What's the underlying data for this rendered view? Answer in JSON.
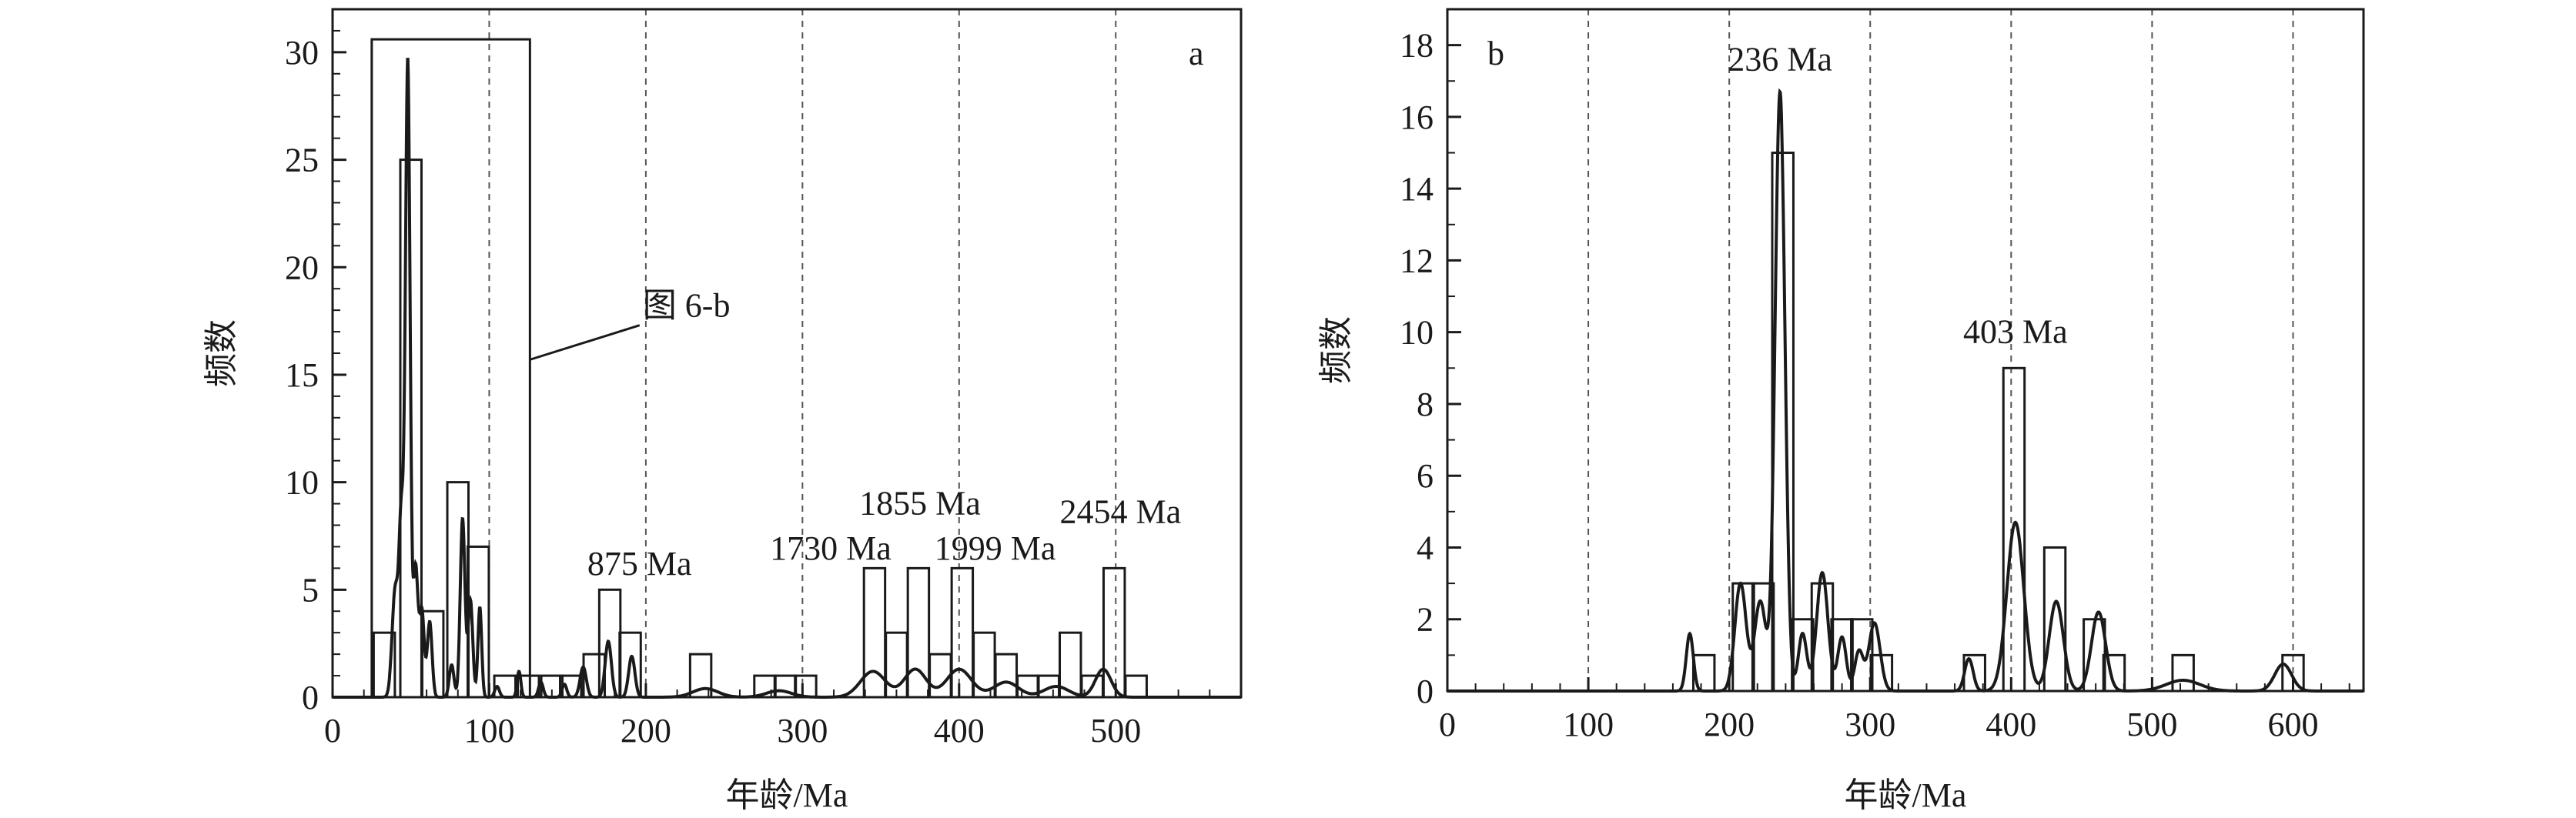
{
  "chart_data": [
    {
      "panel_letter": "a",
      "type": "bar",
      "xlabel": "年龄/Ma",
      "ylabel": "频数",
      "xlim": [
        0,
        580
      ],
      "ylim": [
        0,
        32
      ],
      "xticks": [
        0,
        100,
        200,
        300,
        400,
        500
      ],
      "yticks": [
        0,
        5,
        10,
        15,
        20,
        25,
        30
      ],
      "bin_width": 13.5,
      "vertical_dashed_lines": [
        100,
        200,
        300,
        400,
        500
      ],
      "bars": [
        {
          "x": 33,
          "value": 3
        },
        {
          "x": 50,
          "value": 25
        },
        {
          "x": 64,
          "value": 4
        },
        {
          "x": 80,
          "value": 10
        },
        {
          "x": 93,
          "value": 7
        },
        {
          "x": 110,
          "value": 1
        },
        {
          "x": 125,
          "value": 1
        },
        {
          "x": 140,
          "value": 1
        },
        {
          "x": 152,
          "value": 1
        },
        {
          "x": 167,
          "value": 2
        },
        {
          "x": 177,
          "value": 5
        },
        {
          "x": 190,
          "value": 3
        },
        {
          "x": 235,
          "value": 2
        },
        {
          "x": 276,
          "value": 1
        },
        {
          "x": 289,
          "value": 1
        },
        {
          "x": 302,
          "value": 1
        },
        {
          "x": 346,
          "value": 6
        },
        {
          "x": 360,
          "value": 3
        },
        {
          "x": 374,
          "value": 6
        },
        {
          "x": 388,
          "value": 2
        },
        {
          "x": 402,
          "value": 6
        },
        {
          "x": 416,
          "value": 3
        },
        {
          "x": 430,
          "value": 2
        },
        {
          "x": 444,
          "value": 1
        },
        {
          "x": 457,
          "value": 1
        },
        {
          "x": 471,
          "value": 3
        },
        {
          "x": 485,
          "value": 1
        },
        {
          "x": 499,
          "value": 6
        },
        {
          "x": 513,
          "value": 1
        }
      ],
      "density_peaks": [
        {
          "x": 40,
          "height": 5.0,
          "width": 2
        },
        {
          "x": 44,
          "height": 8.0,
          "width": 1.5
        },
        {
          "x": 48,
          "height": 29.5,
          "width": 1.5
        },
        {
          "x": 53,
          "height": 6.0,
          "width": 1.5
        },
        {
          "x": 57,
          "height": 4.0,
          "width": 1.5
        },
        {
          "x": 62,
          "height": 3.5,
          "width": 1.5
        },
        {
          "x": 76,
          "height": 1.5,
          "width": 1.5
        },
        {
          "x": 83,
          "height": 8.3,
          "width": 1.5
        },
        {
          "x": 88,
          "height": 4.5,
          "width": 1.5
        },
        {
          "x": 94,
          "height": 4.2,
          "width": 1.2
        },
        {
          "x": 105,
          "height": 0.5,
          "width": 1.5
        },
        {
          "x": 119,
          "height": 1.2,
          "width": 1.2
        },
        {
          "x": 133,
          "height": 0.7,
          "width": 1.5
        },
        {
          "x": 148,
          "height": 0.6,
          "width": 1.5
        },
        {
          "x": 160,
          "height": 1.4,
          "width": 2
        },
        {
          "x": 176,
          "height": 2.6,
          "width": 2
        },
        {
          "x": 191,
          "height": 1.9,
          "width": 2
        },
        {
          "x": 238,
          "height": 0.4,
          "width": 8
        },
        {
          "x": 285,
          "height": 0.3,
          "width": 8
        },
        {
          "x": 345,
          "height": 1.2,
          "width": 8
        },
        {
          "x": 372,
          "height": 1.3,
          "width": 7
        },
        {
          "x": 400,
          "height": 1.3,
          "width": 8
        },
        {
          "x": 430,
          "height": 0.7,
          "width": 8
        },
        {
          "x": 462,
          "height": 0.5,
          "width": 8
        },
        {
          "x": 492,
          "height": 1.3,
          "width": 5
        }
      ],
      "annotations": [
        {
          "text": "875 Ma",
          "x": 196,
          "y": 5.7
        },
        {
          "text": "1730 Ma",
          "x": 318,
          "y": 6.4
        },
        {
          "text": "1855 Ma",
          "x": 375,
          "y": 8.5
        },
        {
          "text": "1999 Ma",
          "x": 423,
          "y": 6.4
        },
        {
          "text": "2454 Ma",
          "x": 503,
          "y": 8.1
        }
      ],
      "inset_box": {
        "x0": 25,
        "x1": 126,
        "y0": 0,
        "y1": 30.6
      },
      "inset_label": "图 6-b",
      "inset_label_pos": {
        "x": 198,
        "y": 17.7
      },
      "inset_leader_from": {
        "x": 126,
        "y": 15.7
      },
      "inset_leader_to": {
        "x": 196,
        "y": 17.3
      }
    },
    {
      "panel_letter": "b",
      "type": "bar",
      "xlabel": "年龄/Ma",
      "ylabel": "频数",
      "xlim": [
        0,
        650
      ],
      "ylim": [
        0,
        19
      ],
      "xticks": [
        0,
        100,
        200,
        300,
        400,
        500,
        600
      ],
      "yticks": [
        0,
        2,
        4,
        6,
        8,
        10,
        12,
        14,
        16,
        18
      ],
      "bin_width": 15,
      "vertical_dashed_lines": [
        100,
        200,
        300,
        400,
        500,
        600
      ],
      "bars": [
        {
          "x": 182,
          "value": 1
        },
        {
          "x": 210,
          "value": 3
        },
        {
          "x": 224,
          "value": 3
        },
        {
          "x": 238,
          "value": 15
        },
        {
          "x": 252,
          "value": 2
        },
        {
          "x": 266,
          "value": 3
        },
        {
          "x": 280,
          "value": 2
        },
        {
          "x": 294,
          "value": 2
        },
        {
          "x": 308,
          "value": 1
        },
        {
          "x": 374,
          "value": 1
        },
        {
          "x": 402,
          "value": 9
        },
        {
          "x": 431,
          "value": 4
        },
        {
          "x": 459,
          "value": 2
        },
        {
          "x": 473,
          "value": 1
        },
        {
          "x": 522,
          "value": 1
        },
        {
          "x": 600,
          "value": 1
        }
      ],
      "density_peaks": [
        {
          "x": 172,
          "height": 1.6,
          "width": 2.5
        },
        {
          "x": 208,
          "height": 3.0,
          "width": 4
        },
        {
          "x": 222,
          "height": 2.5,
          "width": 4
        },
        {
          "x": 236,
          "height": 16.7,
          "width": 3.5
        },
        {
          "x": 252,
          "height": 1.6,
          "width": 3
        },
        {
          "x": 266,
          "height": 3.3,
          "width": 4
        },
        {
          "x": 280,
          "height": 1.5,
          "width": 3
        },
        {
          "x": 292,
          "height": 1.1,
          "width": 3
        },
        {
          "x": 303,
          "height": 1.9,
          "width": 4
        },
        {
          "x": 370,
          "height": 0.9,
          "width": 3
        },
        {
          "x": 403,
          "height": 4.7,
          "width": 6
        },
        {
          "x": 432,
          "height": 2.5,
          "width": 5
        },
        {
          "x": 462,
          "height": 2.2,
          "width": 5
        },
        {
          "x": 522,
          "height": 0.3,
          "width": 12
        },
        {
          "x": 593,
          "height": 0.75,
          "width": 6
        }
      ],
      "annotations": [
        {
          "text": "236 Ma",
          "x": 236,
          "y": 17.3
        },
        {
          "text": "403 Ma",
          "x": 403,
          "y": 9.7
        }
      ]
    }
  ]
}
